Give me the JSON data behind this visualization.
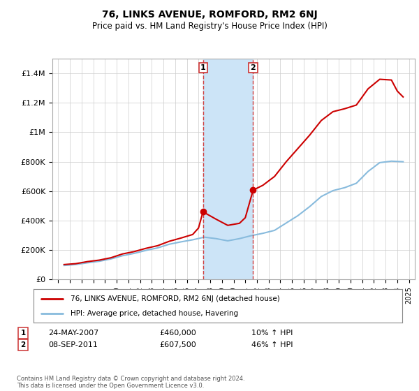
{
  "title": "76, LINKS AVENUE, ROMFORD, RM2 6NJ",
  "subtitle": "Price paid vs. HM Land Registry's House Price Index (HPI)",
  "legend_property": "76, LINKS AVENUE, ROMFORD, RM2 6NJ (detached house)",
  "legend_hpi": "HPI: Average price, detached house, Havering",
  "footer": "Contains HM Land Registry data © Crown copyright and database right 2024.\nThis data is licensed under the Open Government Licence v3.0.",
  "transaction1_label": "1",
  "transaction1_date": "24-MAY-2007",
  "transaction1_price": "£460,000",
  "transaction1_hpi": "10% ↑ HPI",
  "transaction2_label": "2",
  "transaction2_date": "08-SEP-2011",
  "transaction2_price": "£607,500",
  "transaction2_hpi": "46% ↑ HPI",
  "highlight_xstart": 2007.38,
  "highlight_xend": 2011.67,
  "highlight_color": "#cce4f7",
  "highlight_border_color": "#d04040",
  "property_color": "#cc0000",
  "hpi_color": "#88bbdd",
  "marker1_x": 2007.38,
  "marker1_y": 460000,
  "marker2_x": 2011.67,
  "marker2_y": 607500,
  "ylim": [
    0,
    1500000
  ],
  "xlim_start": 1994.5,
  "xlim_end": 2025.5,
  "hpi_years": [
    1995.5,
    1996.5,
    1997.5,
    1998.5,
    1999.5,
    2000.5,
    2001.5,
    2002.5,
    2003.5,
    2004.5,
    2005.5,
    2006.5,
    2007.5,
    2008.5,
    2009.5,
    2010.5,
    2011.5,
    2012.5,
    2013.5,
    2014.5,
    2015.5,
    2016.5,
    2017.5,
    2018.5,
    2019.5,
    2020.5,
    2021.5,
    2022.5,
    2023.5,
    2024.5
  ],
  "hpi_values": [
    96000,
    102000,
    114000,
    124000,
    140000,
    162000,
    178000,
    198000,
    215000,
    240000,
    256000,
    270000,
    288000,
    278000,
    263000,
    278000,
    298000,
    314000,
    334000,
    384000,
    434000,
    495000,
    564000,
    604000,
    624000,
    654000,
    734000,
    794000,
    804000,
    800000
  ],
  "prop_years": [
    1995.5,
    1996.5,
    1997.5,
    1998.5,
    1999.5,
    2000.5,
    2001.5,
    2002.5,
    2003.5,
    2004.5,
    2005.5,
    2006.5,
    2007.0,
    2007.38,
    2008.5,
    2009.5,
    2010.5,
    2011.0,
    2011.67,
    2012.5,
    2013.5,
    2014.5,
    2015.5,
    2016.5,
    2017.5,
    2018.5,
    2019.5,
    2020.5,
    2021.5,
    2022.5,
    2023.5,
    2024.0,
    2024.5
  ],
  "prop_values": [
    102000,
    108000,
    122000,
    132000,
    148000,
    174000,
    190000,
    212000,
    230000,
    260000,
    282000,
    306000,
    350000,
    460000,
    410000,
    368000,
    382000,
    420000,
    607500,
    640000,
    700000,
    800000,
    890000,
    980000,
    1080000,
    1140000,
    1160000,
    1185000,
    1295000,
    1360000,
    1355000,
    1280000,
    1240000
  ]
}
